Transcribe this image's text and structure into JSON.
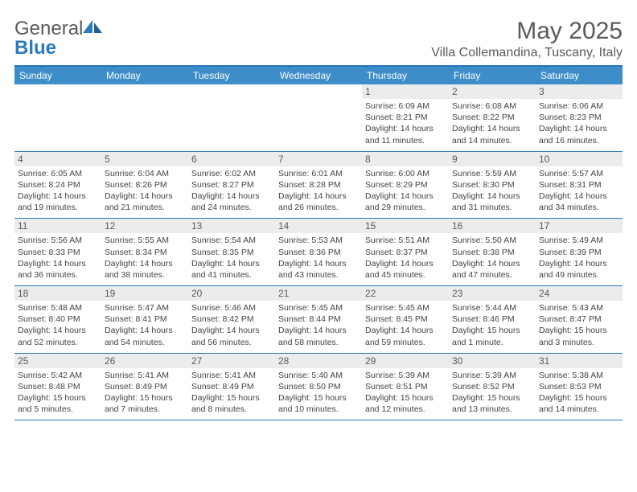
{
  "brand": {
    "part1": "General",
    "part2": "Blue"
  },
  "title": "May 2025",
  "location": "Villa Collemandina, Tuscany, Italy",
  "colors": {
    "header_bg": "#3d8dc9",
    "border": "#2b7bbd",
    "daynum_bg": "#ececec",
    "text": "#444444",
    "title_text": "#5a5a5a"
  },
  "day_labels": [
    "Sunday",
    "Monday",
    "Tuesday",
    "Wednesday",
    "Thursday",
    "Friday",
    "Saturday"
  ],
  "weeks": [
    [
      {
        "n": "",
        "sr": "",
        "ss": "",
        "dl": ""
      },
      {
        "n": "",
        "sr": "",
        "ss": "",
        "dl": ""
      },
      {
        "n": "",
        "sr": "",
        "ss": "",
        "dl": ""
      },
      {
        "n": "",
        "sr": "",
        "ss": "",
        "dl": ""
      },
      {
        "n": "1",
        "sr": "Sunrise: 6:09 AM",
        "ss": "Sunset: 8:21 PM",
        "dl": "Daylight: 14 hours and 11 minutes."
      },
      {
        "n": "2",
        "sr": "Sunrise: 6:08 AM",
        "ss": "Sunset: 8:22 PM",
        "dl": "Daylight: 14 hours and 14 minutes."
      },
      {
        "n": "3",
        "sr": "Sunrise: 6:06 AM",
        "ss": "Sunset: 8:23 PM",
        "dl": "Daylight: 14 hours and 16 minutes."
      }
    ],
    [
      {
        "n": "4",
        "sr": "Sunrise: 6:05 AM",
        "ss": "Sunset: 8:24 PM",
        "dl": "Daylight: 14 hours and 19 minutes."
      },
      {
        "n": "5",
        "sr": "Sunrise: 6:04 AM",
        "ss": "Sunset: 8:26 PM",
        "dl": "Daylight: 14 hours and 21 minutes."
      },
      {
        "n": "6",
        "sr": "Sunrise: 6:02 AM",
        "ss": "Sunset: 8:27 PM",
        "dl": "Daylight: 14 hours and 24 minutes."
      },
      {
        "n": "7",
        "sr": "Sunrise: 6:01 AM",
        "ss": "Sunset: 8:28 PM",
        "dl": "Daylight: 14 hours and 26 minutes."
      },
      {
        "n": "8",
        "sr": "Sunrise: 6:00 AM",
        "ss": "Sunset: 8:29 PM",
        "dl": "Daylight: 14 hours and 29 minutes."
      },
      {
        "n": "9",
        "sr": "Sunrise: 5:59 AM",
        "ss": "Sunset: 8:30 PM",
        "dl": "Daylight: 14 hours and 31 minutes."
      },
      {
        "n": "10",
        "sr": "Sunrise: 5:57 AM",
        "ss": "Sunset: 8:31 PM",
        "dl": "Daylight: 14 hours and 34 minutes."
      }
    ],
    [
      {
        "n": "11",
        "sr": "Sunrise: 5:56 AM",
        "ss": "Sunset: 8:33 PM",
        "dl": "Daylight: 14 hours and 36 minutes."
      },
      {
        "n": "12",
        "sr": "Sunrise: 5:55 AM",
        "ss": "Sunset: 8:34 PM",
        "dl": "Daylight: 14 hours and 38 minutes."
      },
      {
        "n": "13",
        "sr": "Sunrise: 5:54 AM",
        "ss": "Sunset: 8:35 PM",
        "dl": "Daylight: 14 hours and 41 minutes."
      },
      {
        "n": "14",
        "sr": "Sunrise: 5:53 AM",
        "ss": "Sunset: 8:36 PM",
        "dl": "Daylight: 14 hours and 43 minutes."
      },
      {
        "n": "15",
        "sr": "Sunrise: 5:51 AM",
        "ss": "Sunset: 8:37 PM",
        "dl": "Daylight: 14 hours and 45 minutes."
      },
      {
        "n": "16",
        "sr": "Sunrise: 5:50 AM",
        "ss": "Sunset: 8:38 PM",
        "dl": "Daylight: 14 hours and 47 minutes."
      },
      {
        "n": "17",
        "sr": "Sunrise: 5:49 AM",
        "ss": "Sunset: 8:39 PM",
        "dl": "Daylight: 14 hours and 49 minutes."
      }
    ],
    [
      {
        "n": "18",
        "sr": "Sunrise: 5:48 AM",
        "ss": "Sunset: 8:40 PM",
        "dl": "Daylight: 14 hours and 52 minutes."
      },
      {
        "n": "19",
        "sr": "Sunrise: 5:47 AM",
        "ss": "Sunset: 8:41 PM",
        "dl": "Daylight: 14 hours and 54 minutes."
      },
      {
        "n": "20",
        "sr": "Sunrise: 5:46 AM",
        "ss": "Sunset: 8:42 PM",
        "dl": "Daylight: 14 hours and 56 minutes."
      },
      {
        "n": "21",
        "sr": "Sunrise: 5:45 AM",
        "ss": "Sunset: 8:44 PM",
        "dl": "Daylight: 14 hours and 58 minutes."
      },
      {
        "n": "22",
        "sr": "Sunrise: 5:45 AM",
        "ss": "Sunset: 8:45 PM",
        "dl": "Daylight: 14 hours and 59 minutes."
      },
      {
        "n": "23",
        "sr": "Sunrise: 5:44 AM",
        "ss": "Sunset: 8:46 PM",
        "dl": "Daylight: 15 hours and 1 minute."
      },
      {
        "n": "24",
        "sr": "Sunrise: 5:43 AM",
        "ss": "Sunset: 8:47 PM",
        "dl": "Daylight: 15 hours and 3 minutes."
      }
    ],
    [
      {
        "n": "25",
        "sr": "Sunrise: 5:42 AM",
        "ss": "Sunset: 8:48 PM",
        "dl": "Daylight: 15 hours and 5 minutes."
      },
      {
        "n": "26",
        "sr": "Sunrise: 5:41 AM",
        "ss": "Sunset: 8:49 PM",
        "dl": "Daylight: 15 hours and 7 minutes."
      },
      {
        "n": "27",
        "sr": "Sunrise: 5:41 AM",
        "ss": "Sunset: 8:49 PM",
        "dl": "Daylight: 15 hours and 8 minutes."
      },
      {
        "n": "28",
        "sr": "Sunrise: 5:40 AM",
        "ss": "Sunset: 8:50 PM",
        "dl": "Daylight: 15 hours and 10 minutes."
      },
      {
        "n": "29",
        "sr": "Sunrise: 5:39 AM",
        "ss": "Sunset: 8:51 PM",
        "dl": "Daylight: 15 hours and 12 minutes."
      },
      {
        "n": "30",
        "sr": "Sunrise: 5:39 AM",
        "ss": "Sunset: 8:52 PM",
        "dl": "Daylight: 15 hours and 13 minutes."
      },
      {
        "n": "31",
        "sr": "Sunrise: 5:38 AM",
        "ss": "Sunset: 8:53 PM",
        "dl": "Daylight: 15 hours and 14 minutes."
      }
    ]
  ]
}
